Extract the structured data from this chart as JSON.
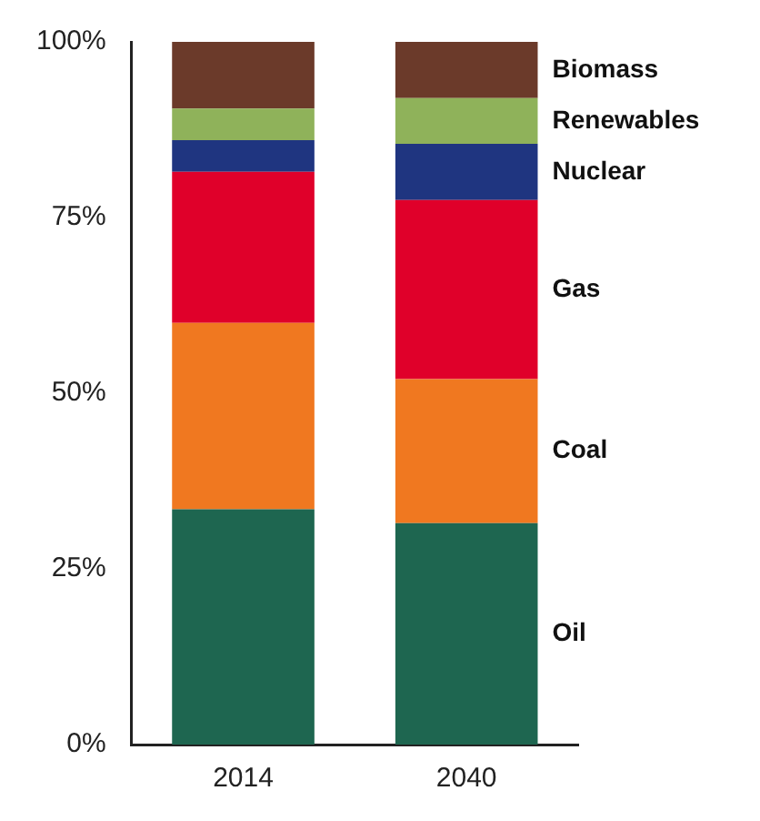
{
  "chart_data": {
    "type": "bar",
    "stacked": true,
    "categories": [
      "2014",
      "2040"
    ],
    "series": [
      {
        "name": "Oil",
        "color": "#1e6650",
        "values": [
          33.5,
          31.5
        ]
      },
      {
        "name": "Coal",
        "color": "#f07820",
        "values": [
          26.5,
          20.5
        ]
      },
      {
        "name": "Gas",
        "color": "#e0002a",
        "values": [
          21.5,
          25.5
        ]
      },
      {
        "name": "Nuclear",
        "color": "#1f3580",
        "values": [
          4.5,
          8
        ]
      },
      {
        "name": "Renewables",
        "color": "#8fb25a",
        "values": [
          4.5,
          6.5
        ]
      },
      {
        "name": "Biomass",
        "color": "#6b3a2a",
        "values": [
          9.5,
          8
        ]
      }
    ],
    "ylim": [
      0,
      100
    ],
    "yticks": [
      {
        "value": 0,
        "label": "0%"
      },
      {
        "value": 25,
        "label": "25%"
      },
      {
        "value": 50,
        "label": "50%"
      },
      {
        "value": 75,
        "label": "75%"
      },
      {
        "value": 100,
        "label": "100%"
      }
    ],
    "grid": false,
    "legend": false
  }
}
